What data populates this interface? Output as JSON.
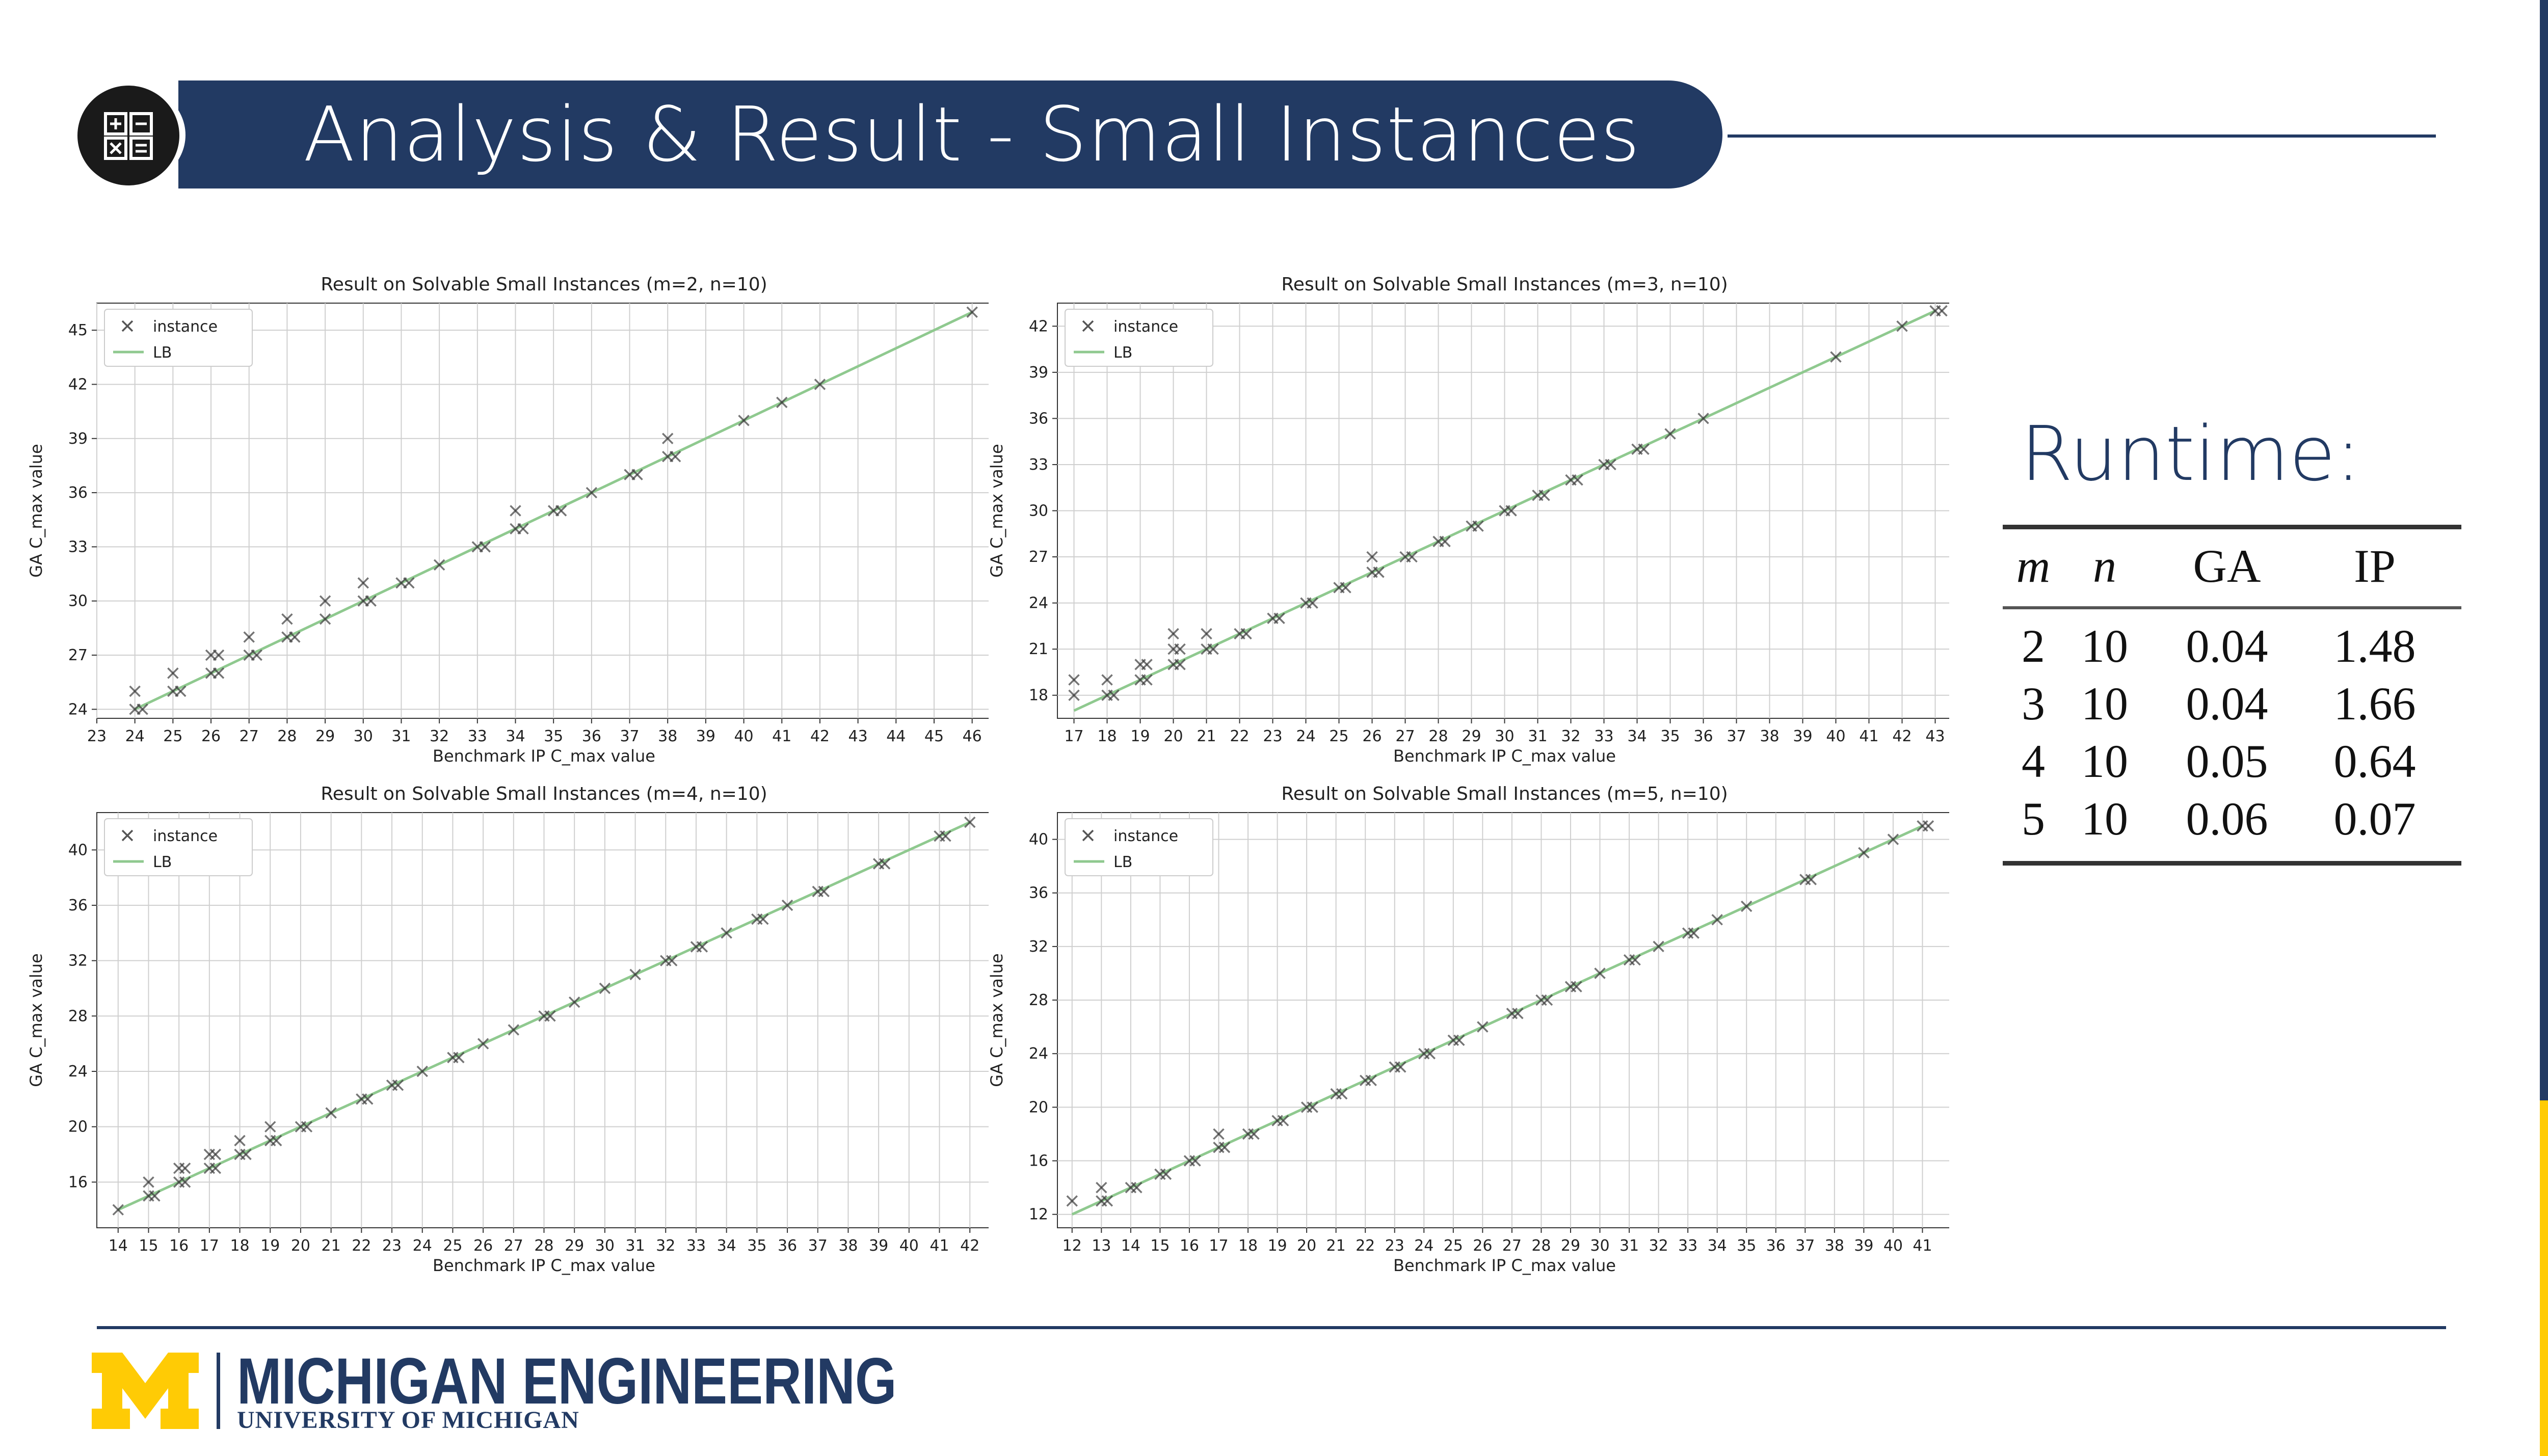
{
  "header": {
    "title": "Analysis & Result - Small Instances",
    "icon": "calculator-icon"
  },
  "footer": {
    "brand": "MICHIGAN ENGINEERING",
    "university": "UNIVERSITY OF MICHIGAN",
    "logo": "block-m-logo"
  },
  "colors": {
    "navy": "#223a63",
    "gold": "#ffcb05",
    "lb_line": "#8fc98f",
    "marker": "#333333"
  },
  "runtime": {
    "label": "Runtime:",
    "columns": [
      "m",
      "n",
      "GA",
      "IP"
    ],
    "rows": [
      [
        "2",
        "10",
        "0.04",
        "1.48"
      ],
      [
        "3",
        "10",
        "0.04",
        "1.66"
      ],
      [
        "4",
        "10",
        "0.05",
        "0.64"
      ],
      [
        "5",
        "10",
        "0.06",
        "0.07"
      ]
    ]
  },
  "chart_data": [
    {
      "type": "scatter",
      "title": "Result on Solvable Small Instances (m=2, n=10)",
      "xlabel": "Benchmark IP C_max value",
      "ylabel": "GA C_max value",
      "legend": [
        "instance",
        "LB"
      ],
      "legend_position": "top-left",
      "grid": true,
      "xlim": [
        23,
        46.5
      ],
      "ylim": [
        23.5,
        46.5
      ],
      "xticks": [
        23,
        24,
        25,
        26,
        27,
        28,
        29,
        30,
        31,
        32,
        33,
        34,
        35,
        36,
        37,
        38,
        39,
        40,
        41,
        42,
        43,
        44,
        45,
        46
      ],
      "yticks": [
        24,
        27,
        30,
        33,
        36,
        39,
        42,
        45
      ],
      "lb": [
        [
          24,
          24
        ],
        [
          46,
          46
        ]
      ],
      "points": [
        [
          24,
          24
        ],
        [
          24,
          25
        ],
        [
          24.2,
          24
        ],
        [
          25,
          25
        ],
        [
          25,
          26
        ],
        [
          25.2,
          25
        ],
        [
          26,
          26
        ],
        [
          26,
          27
        ],
        [
          26.2,
          26
        ],
        [
          26.2,
          27
        ],
        [
          27,
          27
        ],
        [
          27,
          28
        ],
        [
          27.2,
          27
        ],
        [
          28,
          28
        ],
        [
          28,
          29
        ],
        [
          28.2,
          28
        ],
        [
          29,
          29
        ],
        [
          29,
          30
        ],
        [
          30,
          30
        ],
        [
          30,
          31
        ],
        [
          30.2,
          30
        ],
        [
          31,
          31
        ],
        [
          31.2,
          31
        ],
        [
          32,
          32
        ],
        [
          33,
          33
        ],
        [
          33.2,
          33
        ],
        [
          34,
          34
        ],
        [
          34,
          35
        ],
        [
          34.2,
          34
        ],
        [
          35,
          35
        ],
        [
          35.2,
          35
        ],
        [
          36,
          36
        ],
        [
          37,
          37
        ],
        [
          37.2,
          37
        ],
        [
          38,
          38
        ],
        [
          38,
          39
        ],
        [
          38.2,
          38
        ],
        [
          40,
          40
        ],
        [
          41,
          41
        ],
        [
          42,
          42
        ],
        [
          46,
          46
        ]
      ]
    },
    {
      "type": "scatter",
      "title": "Result on Solvable Small Instances (m=3, n=10)",
      "xlabel": "Benchmark IP C_max value",
      "ylabel": "GA C_max value",
      "legend": [
        "instance",
        "LB"
      ],
      "legend_position": "top-left",
      "grid": true,
      "xlim": [
        16.5,
        43.5
      ],
      "ylim": [
        16.5,
        43.5
      ],
      "xticks": [
        17,
        18,
        19,
        20,
        21,
        22,
        23,
        24,
        25,
        26,
        27,
        28,
        29,
        30,
        31,
        32,
        33,
        34,
        35,
        36,
        37,
        38,
        39,
        40,
        41,
        42,
        43
      ],
      "yticks": [
        18,
        21,
        24,
        27,
        30,
        33,
        36,
        39,
        42
      ],
      "lb": [
        [
          17,
          17
        ],
        [
          43,
          43
        ]
      ],
      "points": [
        [
          17,
          18
        ],
        [
          17,
          19
        ],
        [
          18,
          18
        ],
        [
          18,
          19
        ],
        [
          18.2,
          18
        ],
        [
          19,
          19
        ],
        [
          19,
          20
        ],
        [
          19.2,
          19
        ],
        [
          19.2,
          20
        ],
        [
          20,
          20
        ],
        [
          20,
          21
        ],
        [
          20,
          22
        ],
        [
          20.2,
          20
        ],
        [
          20.2,
          21
        ],
        [
          21,
          21
        ],
        [
          21,
          22
        ],
        [
          21.2,
          21
        ],
        [
          22,
          22
        ],
        [
          22.2,
          22
        ],
        [
          23,
          23
        ],
        [
          23.2,
          23
        ],
        [
          24,
          24
        ],
        [
          24.2,
          24
        ],
        [
          25,
          25
        ],
        [
          25.2,
          25
        ],
        [
          26,
          26
        ],
        [
          26,
          27
        ],
        [
          26.2,
          26
        ],
        [
          27,
          27
        ],
        [
          27.2,
          27
        ],
        [
          28,
          28
        ],
        [
          28.2,
          28
        ],
        [
          29,
          29
        ],
        [
          29.2,
          29
        ],
        [
          30,
          30
        ],
        [
          30.2,
          30
        ],
        [
          31,
          31
        ],
        [
          31.2,
          31
        ],
        [
          32,
          32
        ],
        [
          32.2,
          32
        ],
        [
          33,
          33
        ],
        [
          33.2,
          33
        ],
        [
          34,
          34
        ],
        [
          34.2,
          34
        ],
        [
          35,
          35
        ],
        [
          36,
          36
        ],
        [
          40,
          40
        ],
        [
          42,
          42
        ],
        [
          43,
          43
        ],
        [
          43.2,
          43
        ]
      ]
    },
    {
      "type": "scatter",
      "title": "Result on Solvable Small Instances (m=4, n=10)",
      "xlabel": "Benchmark IP C_max value",
      "ylabel": "GA C_max value",
      "legend": [
        "instance",
        "LB"
      ],
      "legend_position": "top-left",
      "grid": true,
      "xlim": [
        13.3,
        42.7
      ],
      "ylim": [
        12.7,
        42.7
      ],
      "xticks": [
        14,
        15,
        16,
        17,
        18,
        19,
        20,
        21,
        22,
        23,
        24,
        25,
        26,
        27,
        28,
        29,
        30,
        31,
        32,
        33,
        34,
        35,
        36,
        37,
        38,
        39,
        40,
        41,
        42
      ],
      "yticks": [
        16,
        20,
        24,
        28,
        32,
        36,
        40
      ],
      "lb": [
        [
          14,
          14
        ],
        [
          42,
          42
        ]
      ],
      "points": [
        [
          14,
          14
        ],
        [
          15,
          15
        ],
        [
          15,
          16
        ],
        [
          15.2,
          15
        ],
        [
          16,
          16
        ],
        [
          16,
          17
        ],
        [
          16.2,
          16
        ],
        [
          16.2,
          17
        ],
        [
          17,
          17
        ],
        [
          17,
          18
        ],
        [
          17.2,
          17
        ],
        [
          17.2,
          18
        ],
        [
          18,
          18
        ],
        [
          18,
          19
        ],
        [
          18.2,
          18
        ],
        [
          19,
          19
        ],
        [
          19,
          20
        ],
        [
          19.2,
          19
        ],
        [
          20,
          20
        ],
        [
          20.2,
          20
        ],
        [
          21,
          21
        ],
        [
          22,
          22
        ],
        [
          22.2,
          22
        ],
        [
          23,
          23
        ],
        [
          23.2,
          23
        ],
        [
          24,
          24
        ],
        [
          25,
          25
        ],
        [
          25.2,
          25
        ],
        [
          26,
          26
        ],
        [
          27,
          27
        ],
        [
          28,
          28
        ],
        [
          28.2,
          28
        ],
        [
          29,
          29
        ],
        [
          30,
          30
        ],
        [
          31,
          31
        ],
        [
          32,
          32
        ],
        [
          32.2,
          32
        ],
        [
          33,
          33
        ],
        [
          33.2,
          33
        ],
        [
          34,
          34
        ],
        [
          35,
          35
        ],
        [
          35.2,
          35
        ],
        [
          36,
          36
        ],
        [
          37,
          37
        ],
        [
          37.2,
          37
        ],
        [
          39,
          39
        ],
        [
          39.2,
          39
        ],
        [
          41,
          41
        ],
        [
          41.2,
          41
        ],
        [
          42,
          42
        ]
      ]
    },
    {
      "type": "scatter",
      "title": "Result on Solvable Small Instances (m=5, n=10)",
      "xlabel": "Benchmark IP C_max value",
      "ylabel": "GA C_max value",
      "legend": [
        "instance",
        "LB"
      ],
      "legend_position": "top-left",
      "grid": true,
      "xlim": [
        11.5,
        42
      ],
      "ylim": [
        11,
        42
      ],
      "xticks": [
        12,
        13,
        14,
        15,
        16,
        17,
        18,
        19,
        20,
        21,
        22,
        23,
        24,
        25,
        26,
        27,
        28,
        29,
        30,
        31,
        32,
        33,
        34,
        35,
        36,
        37,
        38,
        39,
        40,
        41
      ],
      "yticks": [
        12,
        16,
        20,
        24,
        28,
        32,
        36,
        40
      ],
      "lb": [
        [
          12,
          12
        ],
        [
          41,
          41
        ]
      ],
      "points": [
        [
          12,
          13
        ],
        [
          13,
          13
        ],
        [
          13,
          14
        ],
        [
          13.2,
          13
        ],
        [
          14,
          14
        ],
        [
          14.2,
          14
        ],
        [
          15,
          15
        ],
        [
          15.2,
          15
        ],
        [
          16,
          16
        ],
        [
          16.2,
          16
        ],
        [
          17,
          17
        ],
        [
          17,
          18
        ],
        [
          17.2,
          17
        ],
        [
          18,
          18
        ],
        [
          18.2,
          18
        ],
        [
          19,
          19
        ],
        [
          19.2,
          19
        ],
        [
          20,
          20
        ],
        [
          20.2,
          20
        ],
        [
          21,
          21
        ],
        [
          21.2,
          21
        ],
        [
          22,
          22
        ],
        [
          22.2,
          22
        ],
        [
          23,
          23
        ],
        [
          23.2,
          23
        ],
        [
          24,
          24
        ],
        [
          24.2,
          24
        ],
        [
          25,
          25
        ],
        [
          25.2,
          25
        ],
        [
          26,
          26
        ],
        [
          27,
          27
        ],
        [
          27.2,
          27
        ],
        [
          28,
          28
        ],
        [
          28.2,
          28
        ],
        [
          29,
          29
        ],
        [
          29.2,
          29
        ],
        [
          30,
          30
        ],
        [
          31,
          31
        ],
        [
          31.2,
          31
        ],
        [
          32,
          32
        ],
        [
          33,
          33
        ],
        [
          33.2,
          33
        ],
        [
          34,
          34
        ],
        [
          35,
          35
        ],
        [
          37,
          37
        ],
        [
          37.2,
          37
        ],
        [
          39,
          39
        ],
        [
          40,
          40
        ],
        [
          41,
          41
        ],
        [
          41.2,
          41
        ]
      ]
    }
  ]
}
